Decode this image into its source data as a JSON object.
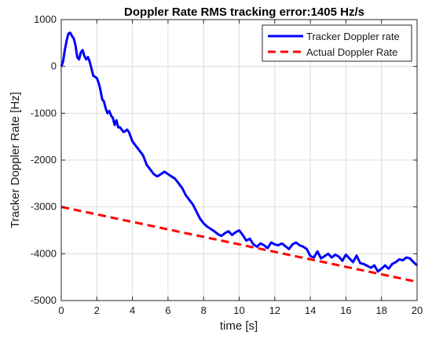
{
  "chart_data": {
    "type": "line",
    "title": "Doppler Rate RMS tracking error:1405 Hz/s",
    "xlabel": "time [s]",
    "ylabel": "Tracker Doppler Rate [Hz]",
    "xlim": [
      0,
      20
    ],
    "ylim": [
      -5000,
      1000
    ],
    "x_ticks": [
      0,
      2,
      4,
      6,
      8,
      10,
      12,
      14,
      16,
      18,
      20
    ],
    "y_ticks": [
      -5000,
      -4000,
      -3000,
      -2000,
      -1000,
      0,
      1000
    ],
    "grid": true,
    "legend_position": "top-right",
    "series": [
      {
        "name": "Tracker Doppler rate",
        "color": "#0000ff",
        "style": "solid",
        "x": [
          0,
          0.1,
          0.2,
          0.3,
          0.4,
          0.5,
          0.6,
          0.7,
          0.8,
          0.9,
          1.0,
          1.1,
          1.2,
          1.3,
          1.4,
          1.5,
          1.6,
          1.7,
          1.8,
          1.9,
          2.0,
          2.1,
          2.2,
          2.3,
          2.4,
          2.5,
          2.6,
          2.7,
          2.8,
          2.9,
          3.0,
          3.1,
          3.2,
          3.3,
          3.4,
          3.5,
          3.6,
          3.7,
          3.8,
          3.9,
          4.0,
          4.2,
          4.4,
          4.6,
          4.8,
          5.0,
          5.2,
          5.4,
          5.6,
          5.8,
          6.0,
          6.2,
          6.4,
          6.6,
          6.8,
          7.0,
          7.2,
          7.4,
          7.6,
          7.8,
          8.0,
          8.2,
          8.4,
          8.6,
          8.8,
          9.0,
          9.2,
          9.4,
          9.6,
          9.8,
          10.0,
          10.2,
          10.4,
          10.6,
          10.8,
          11.0,
          11.2,
          11.4,
          11.6,
          11.8,
          12.0,
          12.2,
          12.4,
          12.6,
          12.8,
          13.0,
          13.2,
          13.4,
          13.6,
          13.8,
          14.0,
          14.2,
          14.4,
          14.6,
          14.8,
          15.0,
          15.2,
          15.4,
          15.6,
          15.8,
          16.0,
          16.2,
          16.4,
          16.6,
          16.8,
          17.0,
          17.2,
          17.4,
          17.6,
          17.8,
          18.0,
          18.2,
          18.4,
          18.6,
          18.8,
          19.0,
          19.2,
          19.4,
          19.6,
          19.8,
          20.0
        ],
        "y": [
          0,
          100,
          350,
          550,
          700,
          720,
          650,
          600,
          450,
          200,
          150,
          300,
          350,
          220,
          150,
          200,
          100,
          -50,
          -200,
          -220,
          -250,
          -350,
          -500,
          -700,
          -750,
          -900,
          -1000,
          -950,
          -1050,
          -1100,
          -1250,
          -1150,
          -1300,
          -1300,
          -1350,
          -1400,
          -1380,
          -1350,
          -1400,
          -1500,
          -1600,
          -1700,
          -1800,
          -1900,
          -2100,
          -2200,
          -2300,
          -2350,
          -2300,
          -2250,
          -2300,
          -2350,
          -2400,
          -2500,
          -2600,
          -2750,
          -2850,
          -2950,
          -3100,
          -3250,
          -3350,
          -3420,
          -3470,
          -3520,
          -3580,
          -3620,
          -3560,
          -3520,
          -3600,
          -3540,
          -3500,
          -3600,
          -3720,
          -3680,
          -3800,
          -3850,
          -3780,
          -3820,
          -3880,
          -3760,
          -3800,
          -3820,
          -3780,
          -3840,
          -3900,
          -3800,
          -3760,
          -3820,
          -3850,
          -3900,
          -4050,
          -4080,
          -3950,
          -4100,
          -4050,
          -4000,
          -4080,
          -4020,
          -4060,
          -4150,
          -4020,
          -4100,
          -4180,
          -4040,
          -4200,
          -4220,
          -4260,
          -4300,
          -4250,
          -4380,
          -4320,
          -4250,
          -4320,
          -4220,
          -4180,
          -4120,
          -4140,
          -4080,
          -4100,
          -4180,
          -4250
        ]
      },
      {
        "name": "Actual Doppler Rate",
        "color": "#ff0000",
        "style": "dashed",
        "x": [
          0,
          20
        ],
        "y": [
          -3000,
          -4600
        ]
      }
    ]
  }
}
